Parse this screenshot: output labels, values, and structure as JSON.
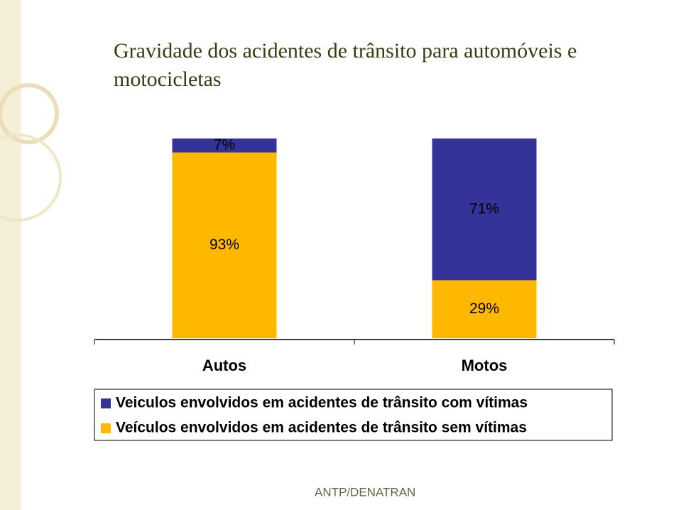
{
  "chart_data": {
    "type": "bar",
    "stacked": true,
    "title": "Gravidade dos acidentes de trânsito para automóveis e motocicletas",
    "categories": [
      "Autos",
      "Motos"
    ],
    "series": [
      {
        "name": "Veiculos envolvidos em acidentes de trânsito com vítimas",
        "color": "#333399",
        "values": [
          7,
          71
        ],
        "value_labels": [
          "7%",
          "71%"
        ]
      },
      {
        "name": "Veículos envolvidos em acidentes de trânsito sem vítimas",
        "color": "#ffb800",
        "values": [
          93,
          29
        ],
        "value_labels": [
          "93%",
          "29%"
        ]
      }
    ],
    "ylim": [
      0,
      100
    ],
    "source": "ANTP/DENATRAN"
  }
}
